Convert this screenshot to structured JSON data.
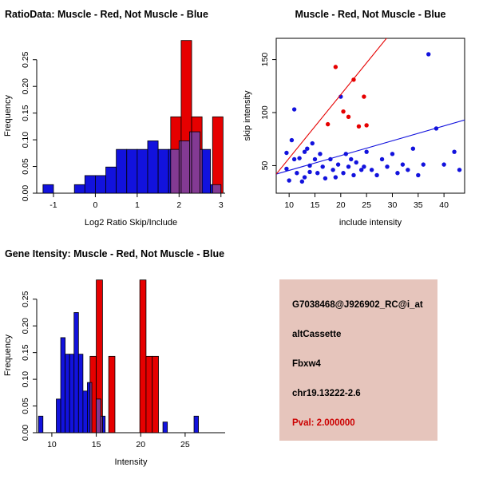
{
  "colors": {
    "red": "#e60000",
    "blue": "#1212dd",
    "overlap": "#833a93",
    "axis": "#000000"
  },
  "chart_data": [
    {
      "id": "ratio-histogram",
      "type": "histogram",
      "title": "RatioData: Muscle - Red, Not Muscle - Blue",
      "title_align": "left",
      "xlabel": "Log2 Ratio Skip/Include",
      "ylabel": "Frequency",
      "xlim": [
        -1.4,
        3.1
      ],
      "ylim": [
        0,
        0.29
      ],
      "xticks": {
        "values": [
          -1,
          0,
          1,
          2,
          3
        ],
        "labels": [
          "-1",
          "0",
          "1",
          "2",
          "3"
        ]
      },
      "yticks": {
        "values": [
          0,
          0.05,
          0.1,
          0.15,
          0.2,
          0.25
        ],
        "labels": [
          "0.00",
          "0.05",
          "0.10",
          "0.15",
          "0.20",
          "0.25"
        ]
      },
      "series": [
        {
          "name": "not-muscle",
          "color_key": "blue",
          "bin_start": -1.25,
          "bin_width": 0.25,
          "heights": [
            0.016,
            0,
            0,
            0.016,
            0.033,
            0.033,
            0.049,
            0.082,
            0.082,
            0.082,
            0.098,
            0.082,
            0.082,
            0.098,
            0.115,
            0.082,
            0.016
          ]
        },
        {
          "name": "muscle",
          "color_key": "red",
          "bin_start": 1.8,
          "bin_width": 0.25,
          "heights": [
            0.143,
            0.286,
            0.143,
            0,
            0.143
          ]
        }
      ]
    },
    {
      "id": "include-skip-scatter",
      "type": "scatter",
      "title": "Muscle - Red, Not Muscle - Blue",
      "title_align": "center",
      "xlabel": "include intensity",
      "ylabel": "skip intensity",
      "xlim": [
        7.5,
        44
      ],
      "ylim": [
        24,
        170
      ],
      "xticks": {
        "values": [
          10,
          15,
          20,
          25,
          30,
          35,
          40
        ],
        "labels": [
          "10",
          "15",
          "20",
          "25",
          "30",
          "35",
          "40"
        ]
      },
      "yticks": {
        "values": [
          50,
          100,
          150
        ],
        "labels": [
          "50",
          "100",
          "150"
        ]
      },
      "series": [
        {
          "name": "not-muscle",
          "color_key": "blue",
          "line": [
            [
              7.5,
              42
            ],
            [
              44,
              93
            ]
          ],
          "points": [
            [
              9.5,
              62
            ],
            [
              9.5,
              47
            ],
            [
              10,
              36
            ],
            [
              10.5,
              74
            ],
            [
              11,
              56
            ],
            [
              11,
              103
            ],
            [
              11.5,
              43
            ],
            [
              12,
              57
            ],
            [
              12.5,
              35
            ],
            [
              13,
              63
            ],
            [
              13,
              39
            ],
            [
              13.5,
              66
            ],
            [
              14,
              50
            ],
            [
              14,
              44
            ],
            [
              14.5,
              71
            ],
            [
              15,
              56
            ],
            [
              15.5,
              43
            ],
            [
              16,
              61
            ],
            [
              16.5,
              49
            ],
            [
              17,
              38
            ],
            [
              18,
              56
            ],
            [
              18.5,
              46
            ],
            [
              19,
              39
            ],
            [
              19.5,
              51
            ],
            [
              20,
              115
            ],
            [
              20.5,
              43
            ],
            [
              21,
              61
            ],
            [
              21.5,
              49
            ],
            [
              22,
              56
            ],
            [
              22.5,
              41
            ],
            [
              23,
              53
            ],
            [
              24,
              46
            ],
            [
              24.5,
              49
            ],
            [
              25,
              63
            ],
            [
              26,
              46
            ],
            [
              27,
              41
            ],
            [
              28,
              56
            ],
            [
              29,
              49
            ],
            [
              30,
              61
            ],
            [
              31,
              43
            ],
            [
              32,
              51
            ],
            [
              33,
              46
            ],
            [
              34,
              66
            ],
            [
              35,
              41
            ],
            [
              36,
              51
            ],
            [
              37,
              155
            ],
            [
              38.5,
              85
            ],
            [
              40,
              51
            ],
            [
              42,
              63
            ],
            [
              43,
              46
            ]
          ]
        },
        {
          "name": "muscle",
          "color_key": "red",
          "line": [
            [
              7.5,
              42
            ],
            [
              29.2,
              172
            ]
          ],
          "points": [
            [
              17.5,
              89
            ],
            [
              19,
              143
            ],
            [
              20.5,
              101
            ],
            [
              21.5,
              96
            ],
            [
              22.5,
              131
            ],
            [
              23.5,
              87
            ],
            [
              24.5,
              115
            ],
            [
              25,
              88
            ]
          ]
        }
      ]
    },
    {
      "id": "gene-intensity-histogram",
      "type": "histogram",
      "title": "Gene Itensity: Muscle - Red, Not Muscle - Blue",
      "title_align": "left",
      "xlabel": "Intensity",
      "ylabel": "Frequency",
      "xlim": [
        8.3,
        29.5
      ],
      "ylim": [
        0,
        0.29
      ],
      "xticks": {
        "values": [
          10,
          15,
          20,
          25
        ],
        "labels": [
          "10",
          "15",
          "20",
          "25"
        ]
      },
      "yticks": {
        "values": [
          0,
          0.05,
          0.1,
          0.15,
          0.2,
          0.25
        ],
        "labels": [
          "0.00",
          "0.05",
          "0.10",
          "0.15",
          "0.20",
          "0.25"
        ]
      },
      "series": [
        {
          "name": "not-muscle",
          "color_key": "blue",
          "bin_start": 8.5,
          "bin_width": 0.5,
          "heights": [
            0.031,
            0,
            0,
            0,
            0.063,
            0.178,
            0.147,
            0.147,
            0.225,
            0.147,
            0.078,
            0.094,
            0,
            0.063,
            0.031,
            0,
            0,
            0,
            0,
            0,
            0,
            0,
            0,
            0,
            0,
            0,
            0,
            0,
            0.02,
            0,
            0,
            0,
            0,
            0,
            0,
            0.031
          ]
        },
        {
          "name": "muscle",
          "color_key": "red",
          "bin_start": 14.3,
          "bin_width": 0.7,
          "heights": [
            0.143,
            0.286,
            0,
            0.143,
            0,
            0,
            0,
            0,
            0.286,
            0.143,
            0.143
          ]
        }
      ]
    }
  ],
  "info_panel": {
    "bg": "#e6c5bc",
    "lines": [
      {
        "text": "G7038468@J926902_RC@i_at",
        "color": "#000000"
      },
      {
        "text": "altCassette",
        "color": "#000000"
      },
      {
        "text": "Fbxw4",
        "color": "#000000"
      },
      {
        "text": "chr19.13222-2.6",
        "color": "#000000"
      },
      {
        "text": "Pval: 2.000000",
        "color": "#cc0000"
      }
    ]
  }
}
